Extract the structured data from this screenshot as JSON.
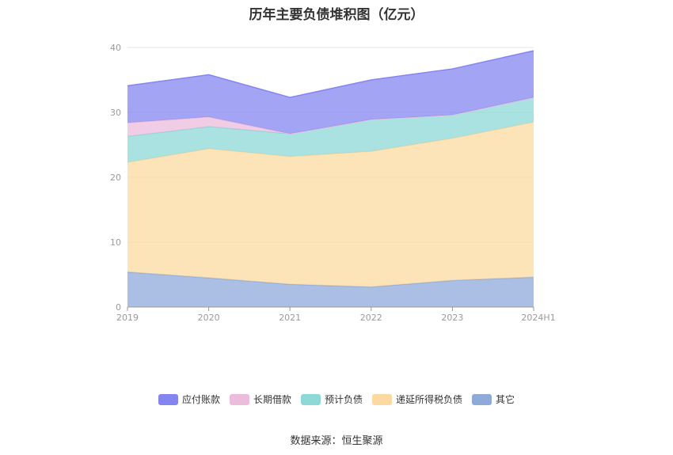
{
  "title": "历年主要负债堆积图（亿元）",
  "source": "数据来源：恒生聚源",
  "chart_data": {
    "type": "area",
    "stacked": true,
    "categories": [
      "2019",
      "2020",
      "2021",
      "2022",
      "2023",
      "2024H1"
    ],
    "ylim": [
      0,
      40
    ],
    "yticks": [
      0,
      10,
      20,
      30,
      40
    ],
    "grid": true,
    "legend_position": "bottom",
    "series": [
      {
        "name": "其它",
        "color": "#8eaad9",
        "values": [
          5.4,
          4.5,
          3.5,
          3.1,
          4.1,
          4.6
        ]
      },
      {
        "name": "递延所得税负债",
        "color": "#fcd9a0",
        "values": [
          16.9,
          19.9,
          19.7,
          20.9,
          21.9,
          23.9
        ]
      },
      {
        "name": "预计负债",
        "color": "#8ed8d8",
        "values": [
          4.0,
          3.4,
          3.5,
          4.9,
          3.6,
          3.8
        ]
      },
      {
        "name": "长期借款",
        "color": "#ebbcdc",
        "values": [
          2.1,
          1.5,
          0.0,
          0.0,
          0.0,
          0.0
        ]
      },
      {
        "name": "应付账款",
        "color": "#8585f2",
        "values": [
          5.7,
          6.5,
          5.6,
          6.1,
          7.1,
          7.2
        ]
      }
    ],
    "legend_order": [
      "应付账款",
      "长期借款",
      "预计负债",
      "递延所得税负债",
      "其它"
    ]
  }
}
